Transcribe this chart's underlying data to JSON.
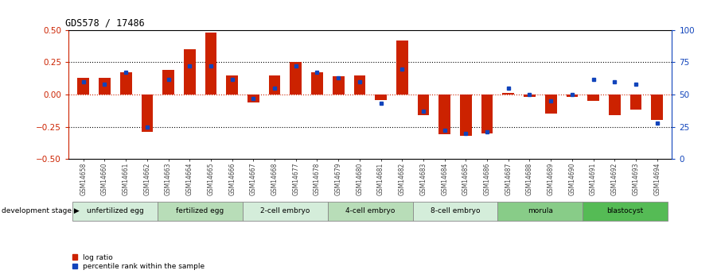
{
  "title": "GDS578 / 17486",
  "samples": [
    "GSM14658",
    "GSM14660",
    "GSM14661",
    "GSM14662",
    "GSM14663",
    "GSM14664",
    "GSM14665",
    "GSM14666",
    "GSM14667",
    "GSM14668",
    "GSM14677",
    "GSM14678",
    "GSM14679",
    "GSM14680",
    "GSM14681",
    "GSM14682",
    "GSM14683",
    "GSM14684",
    "GSM14685",
    "GSM14686",
    "GSM14687",
    "GSM14688",
    "GSM14689",
    "GSM14690",
    "GSM14691",
    "GSM14692",
    "GSM14693",
    "GSM14694"
  ],
  "log_ratio": [
    0.13,
    0.13,
    0.17,
    -0.29,
    0.19,
    0.35,
    0.48,
    0.15,
    -0.06,
    0.15,
    0.25,
    0.17,
    0.14,
    0.15,
    -0.04,
    0.42,
    -0.16,
    -0.31,
    -0.32,
    -0.3,
    0.01,
    -0.02,
    -0.15,
    -0.02,
    -0.05,
    -0.16,
    -0.12,
    -0.2
  ],
  "percentile": [
    60,
    58,
    67,
    25,
    62,
    72,
    72,
    62,
    47,
    55,
    72,
    67,
    63,
    60,
    43,
    70,
    37,
    22,
    20,
    21,
    55,
    50,
    45,
    50,
    62,
    60,
    58,
    28
  ],
  "stages": [
    {
      "label": "unfertilized egg",
      "start": 0,
      "end": 4,
      "color": "#d4edda"
    },
    {
      "label": "fertilized egg",
      "start": 4,
      "end": 8,
      "color": "#b8ddb8"
    },
    {
      "label": "2-cell embryo",
      "start": 8,
      "end": 12,
      "color": "#d4edda"
    },
    {
      "label": "4-cell embryo",
      "start": 12,
      "end": 16,
      "color": "#b8ddb8"
    },
    {
      "label": "8-cell embryo",
      "start": 16,
      "end": 20,
      "color": "#d4edda"
    },
    {
      "label": "morula",
      "start": 20,
      "end": 24,
      "color": "#88cc88"
    },
    {
      "label": "blastocyst",
      "start": 24,
      "end": 28,
      "color": "#55bb55"
    }
  ],
  "bar_color": "#cc2200",
  "dot_color": "#1144bb",
  "ylim": [
    -0.5,
    0.5
  ],
  "y2lim": [
    0,
    100
  ],
  "hlines_black": [
    0.25,
    -0.25
  ],
  "hline_red": 0.0,
  "bg_color": "#ffffff",
  "ticklabel_color_gray": "#444444"
}
